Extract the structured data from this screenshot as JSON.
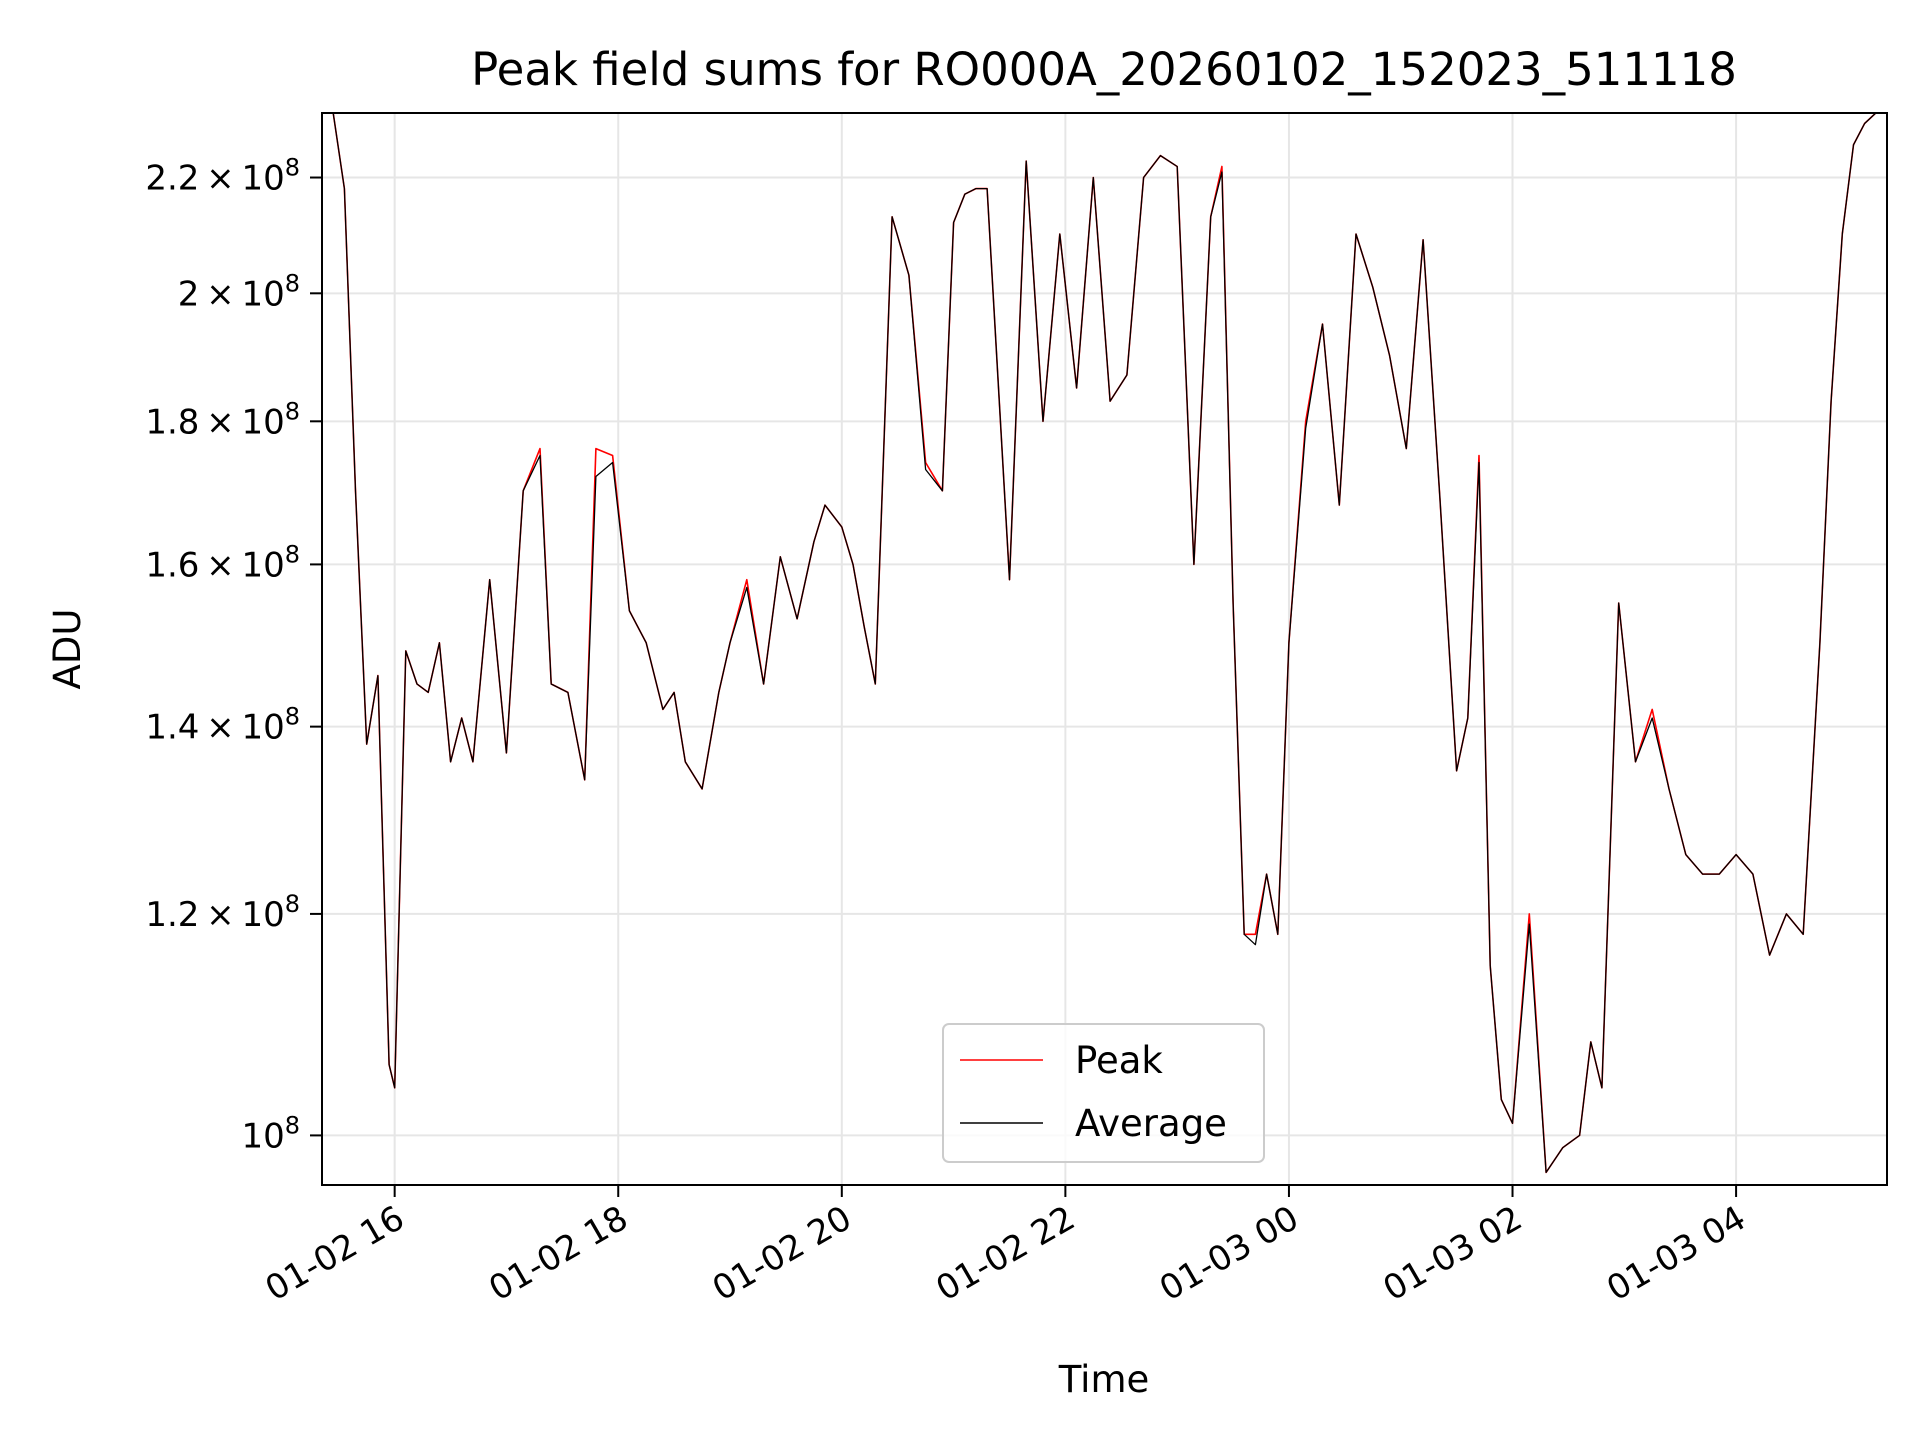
{
  "chart_data": {
    "type": "line",
    "title": "Peak field sums for RO000A_20260102_152023_511118",
    "xlabel": "Time",
    "ylabel": "ADU",
    "yscale": "log",
    "ylim": [
      96000000,
      232000000
    ],
    "xlim": [
      15.35,
      29.35
    ],
    "grid": true,
    "legend_position": "lower center",
    "x_ticks": [
      {
        "value": 16,
        "label": "01-02 16"
      },
      {
        "value": 18,
        "label": "01-02 18"
      },
      {
        "value": 20,
        "label": "01-02 20"
      },
      {
        "value": 22,
        "label": "01-02 22"
      },
      {
        "value": 24,
        "label": "01-03 00"
      },
      {
        "value": 26,
        "label": "01-03 02"
      },
      {
        "value": 28,
        "label": "01-03 04"
      }
    ],
    "y_ticks": [
      {
        "value": 100000000,
        "mantissa": "",
        "exp": "8"
      },
      {
        "value": 120000000,
        "mantissa": "1.2",
        "exp": "8"
      },
      {
        "value": 140000000,
        "mantissa": "1.4",
        "exp": "8"
      },
      {
        "value": 160000000,
        "mantissa": "1.6",
        "exp": "8"
      },
      {
        "value": 180000000,
        "mantissa": "1.8",
        "exp": "8"
      },
      {
        "value": 200000000,
        "mantissa": "2",
        "exp": "8"
      },
      {
        "value": 220000000,
        "mantissa": "2.2",
        "exp": "8"
      }
    ],
    "x": [
      15.35,
      15.45,
      15.55,
      15.65,
      15.75,
      15.85,
      15.95,
      16.0,
      16.1,
      16.2,
      16.3,
      16.4,
      16.5,
      16.6,
      16.7,
      16.85,
      17.0,
      17.15,
      17.3,
      17.4,
      17.55,
      17.7,
      17.8,
      17.95,
      18.1,
      18.25,
      18.4,
      18.5,
      18.6,
      18.75,
      18.9,
      19.0,
      19.15,
      19.3,
      19.45,
      19.6,
      19.75,
      19.85,
      20.0,
      20.1,
      20.2,
      20.3,
      20.45,
      20.6,
      20.75,
      20.9,
      21.0,
      21.1,
      21.2,
      21.3,
      21.5,
      21.65,
      21.8,
      21.95,
      22.1,
      22.25,
      22.4,
      22.55,
      22.7,
      22.85,
      23.0,
      23.15,
      23.3,
      23.4,
      23.5,
      23.6,
      23.7,
      23.8,
      23.9,
      24.0,
      24.15,
      24.3,
      24.45,
      24.6,
      24.75,
      24.9,
      25.05,
      25.2,
      25.35,
      25.5,
      25.6,
      25.7,
      25.8,
      25.9,
      26.0,
      26.15,
      26.3,
      26.45,
      26.6,
      26.7,
      26.8,
      26.95,
      27.1,
      27.25,
      27.4,
      27.55,
      27.7,
      27.85,
      28.0,
      28.15,
      28.3,
      28.45,
      28.6,
      28.75,
      28.85,
      28.95,
      29.05,
      29.15,
      29.25,
      29.35
    ],
    "series": [
      {
        "name": "Peak",
        "color": "#ff0000",
        "values": [
          232000000,
          232000000,
          218000000,
          170000000,
          138000000,
          146000000,
          106000000,
          104000000,
          149000000,
          145000000,
          144000000,
          150000000,
          136000000,
          141000000,
          136000000,
          158000000,
          137000000,
          170000000,
          176000000,
          145000000,
          144000000,
          134000000,
          176000000,
          175000000,
          154000000,
          150000000,
          142000000,
          144000000,
          136000000,
          133000000,
          144000000,
          150000000,
          158000000,
          145000000,
          161000000,
          153000000,
          163000000,
          168000000,
          165000000,
          160000000,
          152000000,
          145000000,
          213000000,
          203000000,
          174000000,
          170000000,
          212000000,
          217000000,
          218000000,
          218000000,
          158000000,
          223000000,
          180000000,
          210000000,
          185000000,
          220000000,
          183000000,
          187000000,
          220000000,
          224000000,
          222000000,
          160000000,
          213000000,
          222000000,
          155000000,
          118000000,
          118000000,
          124000000,
          118000000,
          150000000,
          180000000,
          195000000,
          168000000,
          210000000,
          201000000,
          190000000,
          176000000,
          209000000,
          169000000,
          135000000,
          141000000,
          175000000,
          115000000,
          103000000,
          101000000,
          120000000,
          97000000,
          99000000,
          100000000,
          108000000,
          104000000,
          155000000,
          136000000,
          142000000,
          133000000,
          126000000,
          124000000,
          124000000,
          126000000,
          124000000,
          116000000,
          120000000,
          118000000,
          150000000,
          183000000,
          210000000,
          226000000,
          230000000,
          232000000,
          232000000
        ]
      },
      {
        "name": "Average",
        "color": "#000000",
        "values": [
          232000000,
          232000000,
          218000000,
          170000000,
          138000000,
          146000000,
          106000000,
          104000000,
          149000000,
          145000000,
          144000000,
          150000000,
          136000000,
          141000000,
          136000000,
          158000000,
          137000000,
          170000000,
          175000000,
          145000000,
          144000000,
          134000000,
          172000000,
          174000000,
          154000000,
          150000000,
          142000000,
          144000000,
          136000000,
          133000000,
          144000000,
          150000000,
          157000000,
          145000000,
          161000000,
          153000000,
          163000000,
          168000000,
          165000000,
          160000000,
          152000000,
          145000000,
          213000000,
          203000000,
          173000000,
          170000000,
          212000000,
          217000000,
          218000000,
          218000000,
          158000000,
          223000000,
          180000000,
          210000000,
          185000000,
          220000000,
          183000000,
          187000000,
          220000000,
          224000000,
          222000000,
          160000000,
          213000000,
          221000000,
          155000000,
          118000000,
          117000000,
          124000000,
          118000000,
          150000000,
          179000000,
          195000000,
          168000000,
          210000000,
          201000000,
          190000000,
          176000000,
          209000000,
          169000000,
          135000000,
          141000000,
          174000000,
          115000000,
          103000000,
          101000000,
          119000000,
          97000000,
          99000000,
          100000000,
          108000000,
          104000000,
          155000000,
          136000000,
          141000000,
          133000000,
          126000000,
          124000000,
          124000000,
          126000000,
          124000000,
          116000000,
          120000000,
          118000000,
          150000000,
          183000000,
          210000000,
          226000000,
          230000000,
          232000000,
          232000000
        ]
      }
    ]
  }
}
